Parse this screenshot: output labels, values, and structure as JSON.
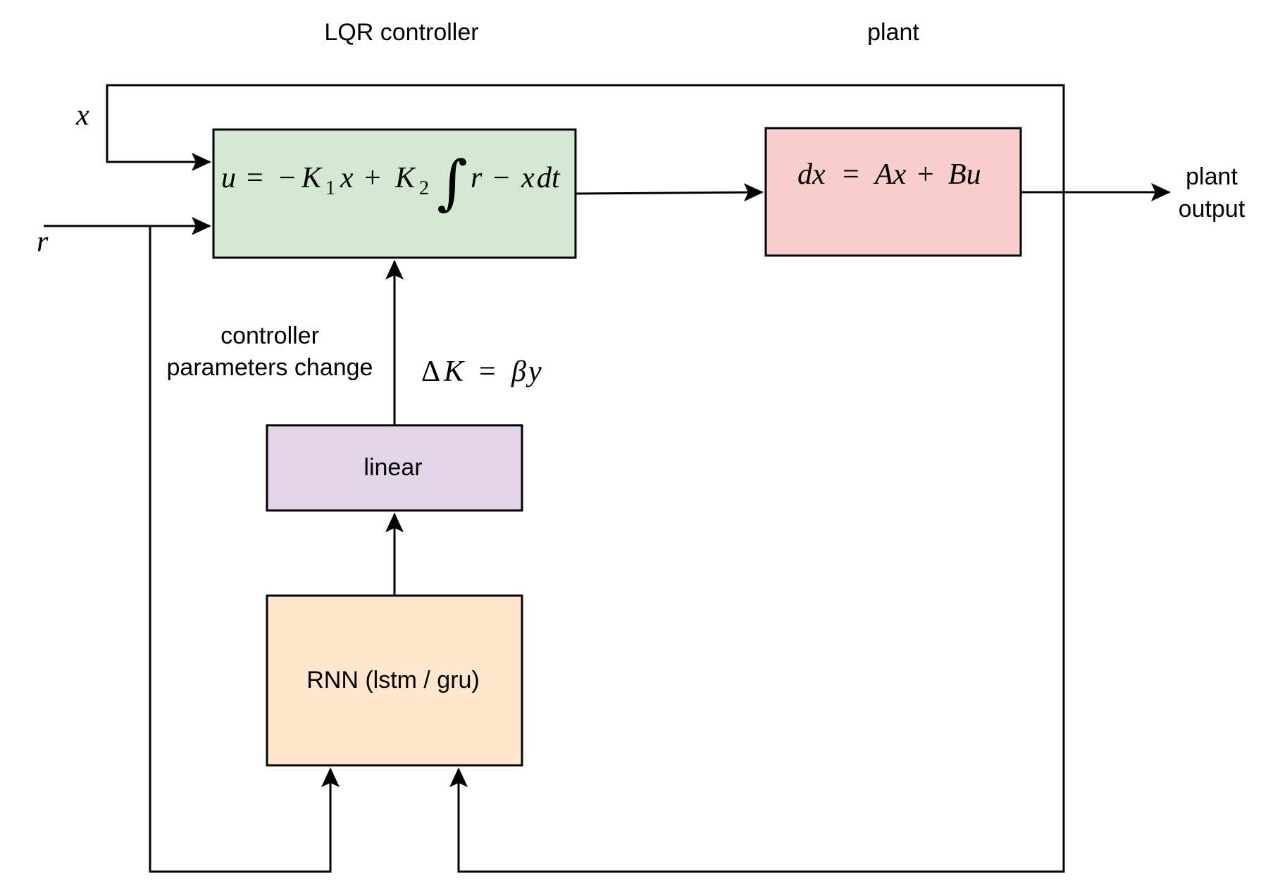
{
  "headers": {
    "controller": "LQR controller",
    "plant": "plant"
  },
  "inputs": {
    "x": "x",
    "r": "r"
  },
  "blocks": {
    "lqr": {
      "color": "#d5e8d4",
      "equation": {
        "u": "u",
        "eq": "=",
        "minus": "−",
        "K": "K",
        "sub1": "1",
        "x": "x",
        "plus": "+",
        "sub2": "2",
        "integral": "∫",
        "r": "r",
        "dt": "dt"
      }
    },
    "plant": {
      "color": "#f8cecc",
      "equation": {
        "dx": "dx",
        "eq": "=",
        "Ax": "Ax",
        "plus": "+",
        "Bu": "Bu"
      }
    },
    "linear": {
      "color": "#e1d5e7",
      "label": "linear"
    },
    "rnn": {
      "color": "#ffe6cc",
      "label": "RNN (lstm / gru)"
    }
  },
  "annotations": {
    "params_line1": "controller",
    "params_line2": "parameters change",
    "delta": {
      "Delta": "Δ",
      "K": "K",
      "eq": "=",
      "beta": "β",
      "y": "y"
    }
  },
  "output": {
    "line1": "plant",
    "line2": "output"
  }
}
